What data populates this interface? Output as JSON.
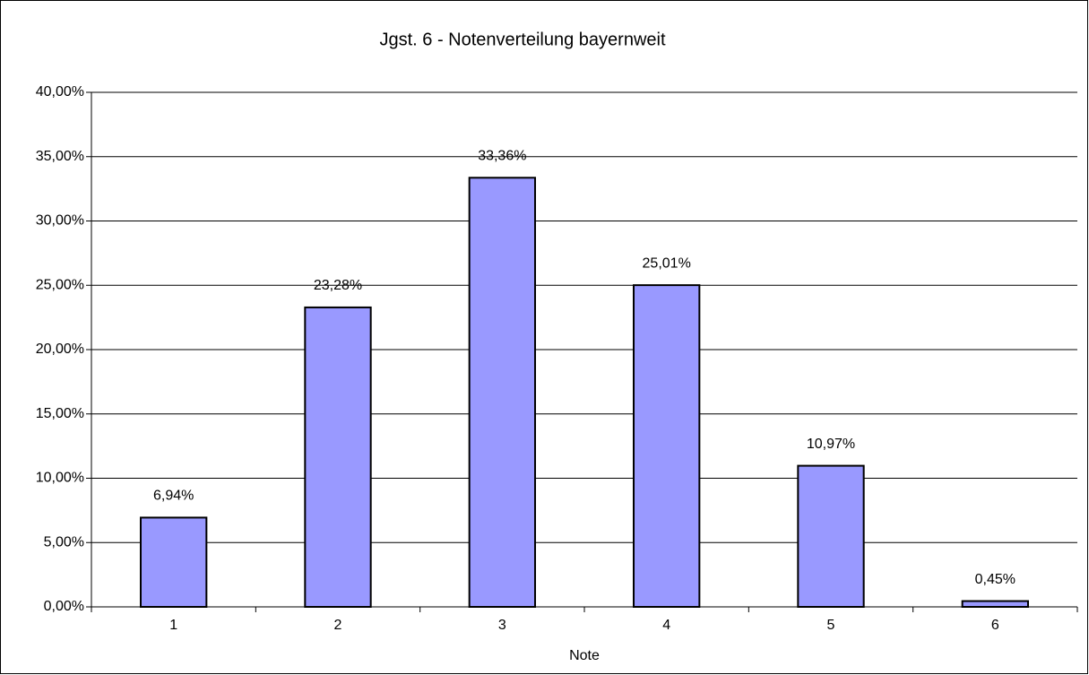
{
  "chart_data": {
    "type": "bar",
    "title": "Jgst. 6 - Notenverteilung  bayernweit",
    "categories": [
      "1",
      "2",
      "3",
      "4",
      "5",
      "6"
    ],
    "values": [
      6.94,
      23.28,
      33.36,
      25.01,
      10.97,
      0.45
    ],
    "value_labels": [
      "6,94%",
      "23,28%",
      "33,36%",
      "25,01%",
      "10,97%",
      "0,45%"
    ],
    "color": "#9999ff",
    "xlabel": "Note",
    "ylim": [
      0,
      40
    ],
    "yticks": [
      {
        "value": 0,
        "label": "0,00%"
      },
      {
        "value": 5,
        "label": "5,00%"
      },
      {
        "value": 10,
        "label": "10,00%"
      },
      {
        "value": 15,
        "label": "15,00%"
      },
      {
        "value": 20,
        "label": "20,00%"
      },
      {
        "value": 25,
        "label": "25,00%"
      },
      {
        "value": 30,
        "label": "30,00%"
      },
      {
        "value": 35,
        "label": "35,00%"
      },
      {
        "value": 40,
        "label": "40,00%"
      }
    ],
    "grid": true
  }
}
